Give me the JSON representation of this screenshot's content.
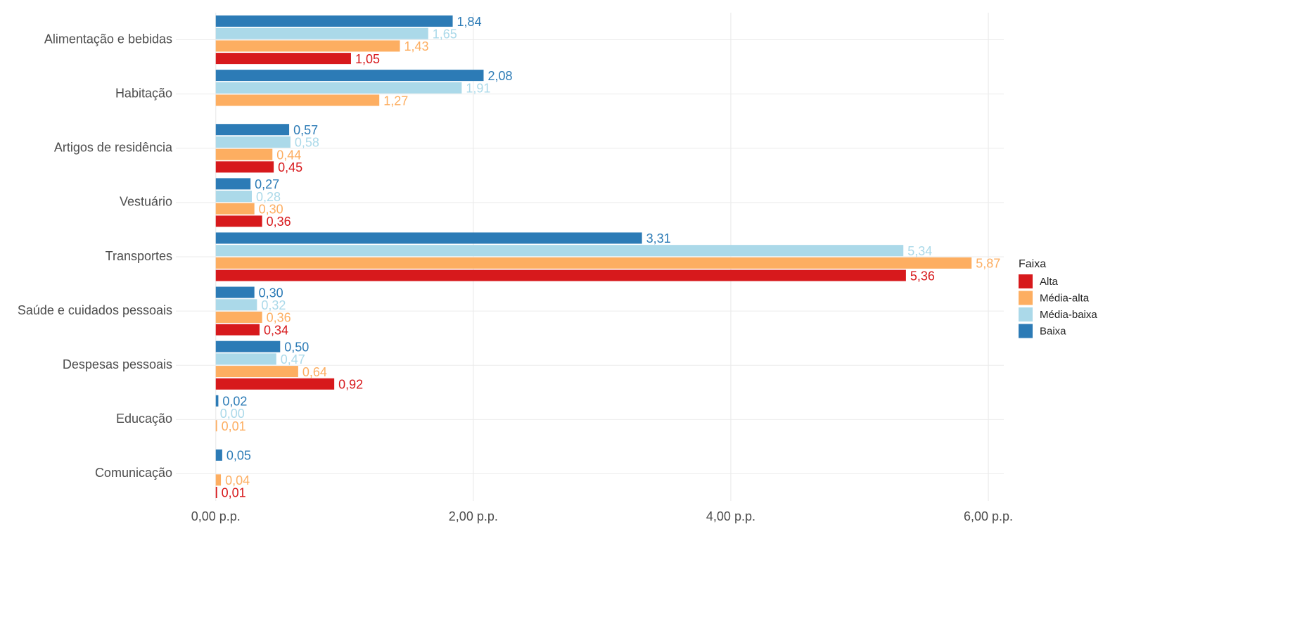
{
  "chart_data": {
    "type": "bar",
    "orientation": "horizontal",
    "categories": [
      "Alimentação e bebidas",
      "Habitação",
      "Artigos de residência",
      "Vestuário",
      "Transportes",
      "Saúde e cuidados pessoais",
      "Despesas pessoais",
      "Educação",
      "Comunicação"
    ],
    "legend_title": "Faixa",
    "legend_position": "right",
    "grid": true,
    "series": [
      {
        "name": "Alta",
        "color": "#d7191c",
        "values": [
          1.05,
          null,
          0.45,
          0.36,
          5.36,
          0.34,
          0.92,
          null,
          0.01
        ],
        "value_labels": [
          "1,05",
          null,
          "0,45",
          "0,36",
          "5,36",
          "0,34",
          "0,92",
          null,
          "0,01"
        ]
      },
      {
        "name": "Média-alta",
        "color": "#fdae61",
        "values": [
          1.43,
          1.27,
          0.44,
          0.3,
          5.87,
          0.36,
          0.64,
          0.01,
          0.04
        ],
        "value_labels": [
          "1,43",
          "1,27",
          "0,44",
          "0,30",
          "5,87",
          "0,36",
          "0,64",
          "0,01",
          "0,04"
        ]
      },
      {
        "name": "Média-baixa",
        "color": "#abd9e9",
        "values": [
          1.65,
          1.91,
          0.58,
          0.28,
          5.34,
          0.32,
          0.47,
          0.0,
          null
        ],
        "value_labels": [
          "1,65",
          "1,91",
          "0,58",
          "0,28",
          "5,34",
          "0,32",
          "0,47",
          "0,00",
          null
        ]
      },
      {
        "name": "Baixa",
        "color": "#2c7bb6",
        "values": [
          1.84,
          2.08,
          0.57,
          0.27,
          3.31,
          0.3,
          0.5,
          0.02,
          0.05
        ],
        "value_labels": [
          "1,84",
          "2,08",
          "0,57",
          "0,27",
          "3,31",
          "0,30",
          "0,50",
          "0,02",
          "0,05"
        ]
      }
    ],
    "xlim": [
      -0.31,
      6.12
    ],
    "xticks": [
      {
        "value": 0,
        "label": "0,00 p.p."
      },
      {
        "value": 2,
        "label": "2,00 p.p."
      },
      {
        "value": 4,
        "label": "4,00 p.p."
      },
      {
        "value": 6,
        "label": "6,00 p.p."
      }
    ]
  }
}
